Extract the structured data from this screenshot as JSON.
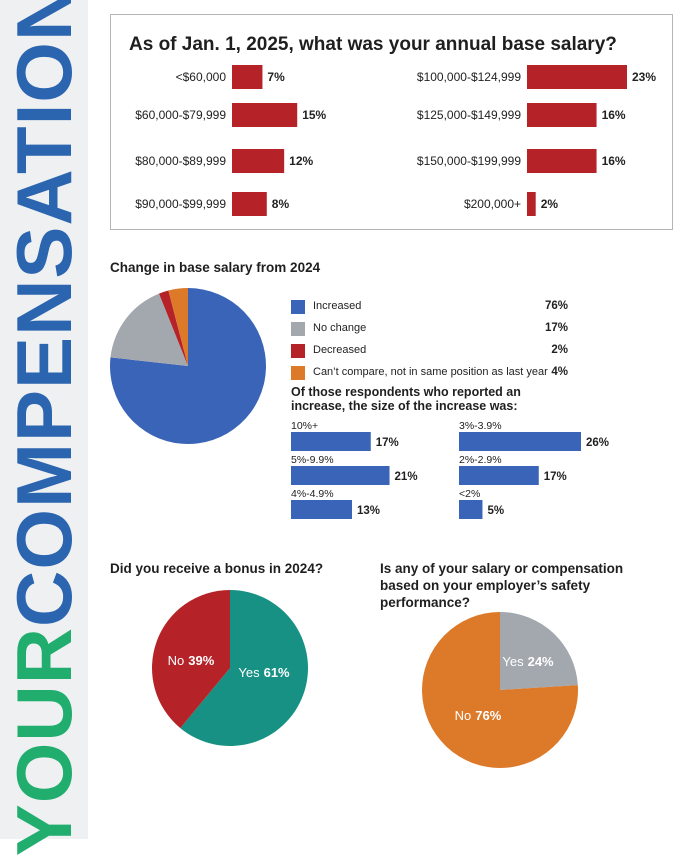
{
  "side_title": {
    "word1": "YOUR",
    "word2": "COMPENSATION"
  },
  "colors": {
    "red": "#b52228",
    "blue": "#3a64b8",
    "gray": "#a3a7ae",
    "orange": "#dd7a2a",
    "teal": "#169184",
    "band": "#eef0f2",
    "green": "#20ad6e"
  },
  "chart_data": [
    {
      "type": "bar",
      "orientation": "horizontal",
      "title": "As of Jan. 1, 2025, what was your annual base salary?",
      "categories": [
        "<$60,000",
        "$60,000-$79,999",
        "$80,000-$89,999",
        "$90,000-$99,999",
        "$100,000-$124,999",
        "$125,000-$149,999",
        "$150,000-$199,999",
        "$200,000+"
      ],
      "values": [
        7,
        15,
        12,
        8,
        23,
        16,
        16,
        2
      ],
      "value_labels": [
        "7%",
        "15%",
        "12%",
        "8%",
        "23%",
        "16%",
        "16%",
        "2%"
      ],
      "color": "#b52228"
    },
    {
      "type": "pie",
      "title": "Change in base salary from 2024",
      "labels": [
        "Increased",
        "No change",
        "Decreased",
        "Can’t compare, not in same position as last year"
      ],
      "values": [
        76,
        17,
        2,
        4
      ],
      "value_labels": [
        "76%",
        "17%",
        "2%",
        "4%"
      ],
      "colors": [
        "#3a64b8",
        "#a3a7ae",
        "#b52228",
        "#dd7a2a"
      ],
      "legend": "right"
    },
    {
      "type": "bar",
      "orientation": "horizontal",
      "title": "Of those respondents who reported an increase, the size of the increase was:",
      "categories": [
        "10%+",
        "5%-9.9%",
        "4%-4.9%",
        "3%-3.9%",
        "2%-2.9%",
        "<2%"
      ],
      "values": [
        17,
        21,
        13,
        26,
        17,
        5
      ],
      "value_labels": [
        "17%",
        "21%",
        "13%",
        "26%",
        "17%",
        "5%"
      ],
      "color": "#3a64b8"
    },
    {
      "type": "pie",
      "title": "Did you receive a bonus in 2024?",
      "labels": [
        "Yes",
        "No"
      ],
      "values": [
        61,
        39
      ],
      "value_labels": [
        "61%",
        "39%"
      ],
      "colors": [
        "#169184",
        "#b52228"
      ]
    },
    {
      "type": "pie",
      "title": "Is any of your salary or compensation based on your employer’s safety performance?",
      "labels": [
        "Yes",
        "No"
      ],
      "values": [
        24,
        76
      ],
      "value_labels": [
        "24%",
        "76%"
      ],
      "colors": [
        "#a3a7ae",
        "#dd7a2a"
      ]
    }
  ]
}
